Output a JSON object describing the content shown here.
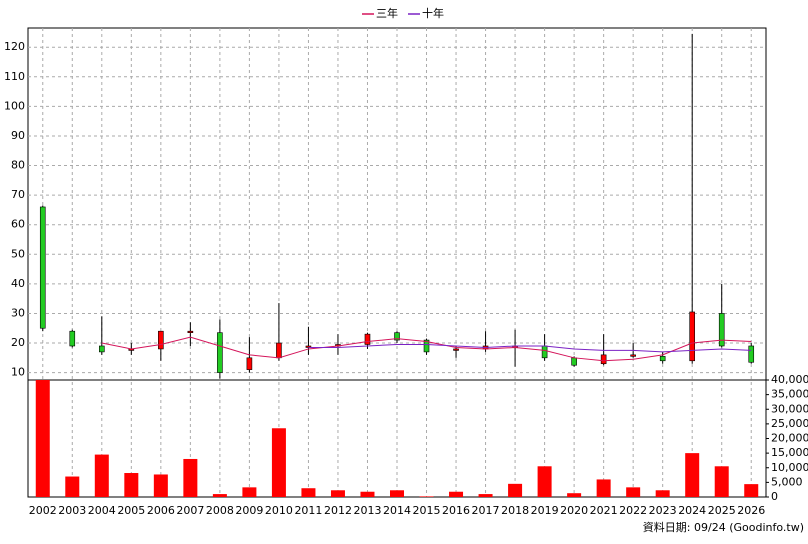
{
  "chart_data": {
    "type": "candlestick",
    "categories": [
      "2002",
      "2003",
      "2004",
      "2005",
      "2006",
      "2007",
      "2008",
      "2009",
      "2010",
      "2011",
      "2012",
      "2013",
      "2014",
      "2015",
      "2016",
      "2017",
      "2018",
      "2019",
      "2020",
      "2021",
      "2022",
      "2023",
      "2024",
      "2025",
      "2026"
    ],
    "open": [
      66,
      24,
      19,
      18,
      18,
      24,
      23.5,
      11,
      15,
      19,
      19.5,
      19.5,
      23.5,
      21,
      18,
      18,
      19,
      19,
      15,
      13,
      16,
      15.5,
      14,
      30,
      19
    ],
    "high": [
      66.5,
      24.5,
      29,
      20,
      24,
      27,
      28,
      22,
      33.5,
      25.5,
      23,
      23.5,
      24,
      21.5,
      19,
      24,
      24.5,
      23,
      15.5,
      23,
      20,
      17,
      124.5,
      40,
      20
    ],
    "low": [
      24,
      18.5,
      16,
      16,
      14,
      19,
      8,
      10,
      14,
      16,
      16,
      18,
      20,
      16,
      15,
      17,
      12,
      14,
      12,
      12.5,
      15,
      13,
      13,
      18.5,
      13
    ],
    "close": [
      25,
      19,
      17,
      18,
      24,
      24,
      10,
      15,
      20,
      19,
      19.5,
      23,
      21,
      17,
      18,
      19,
      19,
      15,
      12.5,
      16,
      16,
      14,
      30.5,
      19,
      13.5
    ],
    "up_color": "#ff0000",
    "down_color": "#22cc22",
    "lines": [
      {
        "name": "三年",
        "color": "#d4145a",
        "values": [
          null,
          null,
          20,
          18,
          19.5,
          22,
          19,
          16,
          15,
          18,
          19,
          20.5,
          21.5,
          20.5,
          18.5,
          18,
          18.5,
          17.5,
          15,
          14,
          14.5,
          16,
          20,
          21,
          20.5
        ]
      },
      {
        "name": "十年",
        "color": "#7b22c4",
        "values": [
          null,
          null,
          null,
          null,
          null,
          null,
          null,
          null,
          null,
          18.5,
          18.5,
          19,
          19.5,
          19.5,
          19,
          18.5,
          19,
          19,
          18,
          17.5,
          17.5,
          17,
          17.5,
          18,
          17.5
        ]
      }
    ],
    "volume": {
      "color": "#ff0000",
      "values": [
        40000,
        7000,
        14500,
        8200,
        7700,
        13000,
        1000,
        3300,
        23500,
        3000,
        2300,
        1800,
        2300,
        200,
        1800,
        1000,
        4500,
        10500,
        1300,
        6000,
        3300,
        2300,
        15000,
        10500,
        4400
      ]
    },
    "ylim": [
      7.5,
      126.5
    ],
    "yticks": [
      10,
      20,
      30,
      40,
      50,
      60,
      70,
      80,
      90,
      100,
      110,
      120
    ],
    "y2lim": [
      0,
      40000
    ],
    "y2ticks": [
      0,
      {
        "value": 5000,
        "label": "5,000"
      },
      {
        "value": 10000,
        "label": "10,000"
      },
      {
        "value": 15000,
        "label": "15,000"
      },
      {
        "value": 20000,
        "label": "20,000"
      },
      {
        "value": 25000,
        "label": "25,000"
      },
      {
        "value": 30000,
        "label": "30,000"
      },
      {
        "value": 35000,
        "label": "35,000"
      },
      {
        "value": 40000,
        "label": "40,000"
      }
    ],
    "grid": true,
    "footnote": "資料日期: 09/24  (Goodinfo.tw)"
  }
}
